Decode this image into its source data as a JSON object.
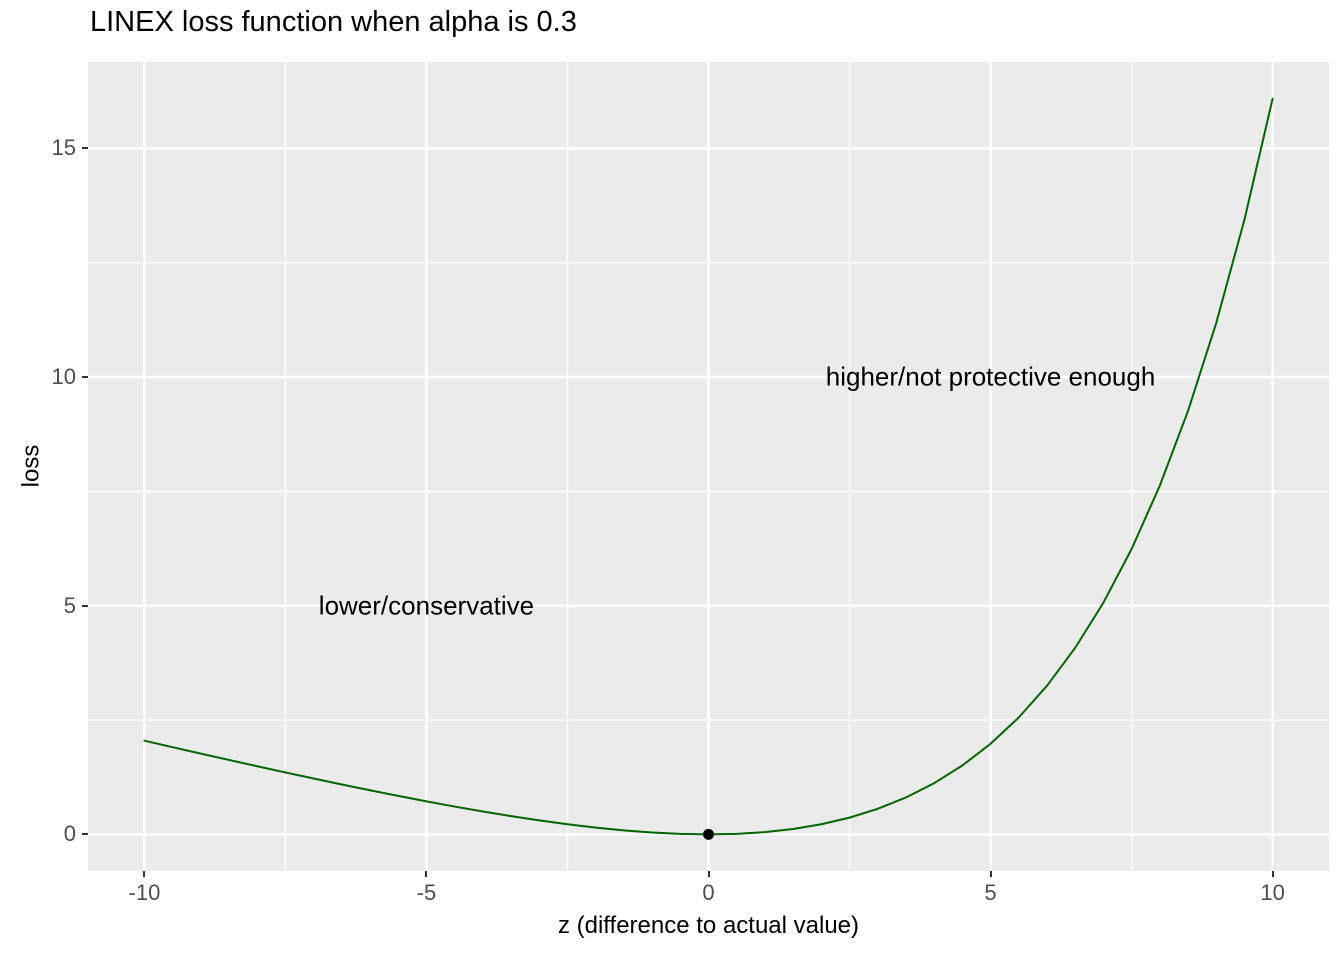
{
  "title": "LINEX loss function when alpha is 0.3",
  "chart_data": {
    "type": "line",
    "title": "LINEX loss function when alpha is 0.3",
    "xlabel": "z (difference to actual value)",
    "ylabel": "loss",
    "alpha": 0.3,
    "xlim": [
      -11,
      11
    ],
    "ylim": [
      -0.8,
      16.89
    ],
    "x_ticks": [
      -10,
      -5,
      0,
      5,
      10
    ],
    "y_ticks": [
      0,
      5,
      10,
      15
    ],
    "x_minor_ticks": [
      -7.5,
      -2.5,
      2.5,
      7.5
    ],
    "y_minor_ticks": [
      2.5,
      7.5,
      12.5
    ],
    "grid": true,
    "legend": false,
    "series": [
      {
        "name": "linex-loss-curve",
        "color": "#006400",
        "x": [
          -10,
          -9.5,
          -9,
          -8.5,
          -8,
          -7.5,
          -7,
          -6.5,
          -6,
          -5.5,
          -5,
          -4.5,
          -4,
          -3.5,
          -3,
          -2.5,
          -2,
          -1.5,
          -1,
          -0.5,
          0,
          0.5,
          1,
          1.5,
          2,
          2.5,
          3,
          3.5,
          4,
          4.5,
          5,
          5.5,
          6,
          6.5,
          7,
          7.5,
          8,
          8.5,
          9,
          9.5,
          10
        ],
        "y": [
          2.0498,
          1.9078,
          1.7672,
          1.6281,
          1.4907,
          1.3554,
          1.2225,
          1.0923,
          0.9653,
          0.842,
          0.7231,
          0.6092,
          0.5012,
          0.3999,
          0.3066,
          0.2224,
          0.1488,
          0.0876,
          0.0408,
          0.0107,
          0,
          0.0118,
          0.0499,
          0.1183,
          0.2221,
          0.367,
          0.5596,
          0.8077,
          1.1201,
          1.5074,
          1.9817,
          2.557,
          3.2496,
          4.0787,
          5.0662,
          6.2377,
          7.6232,
          9.2571,
          11.1797,
          13.4375,
          16.0855
        ]
      }
    ],
    "points": [
      {
        "x": 0,
        "y": 0,
        "color": "#000000",
        "radius": 5.5
      }
    ],
    "annotations": [
      {
        "text": "lower/conservative",
        "x": -5,
        "y": 5
      },
      {
        "text": "higher/not protective enough",
        "x": 5,
        "y": 10
      }
    ],
    "colors": {
      "panel_background": "#EBEBEB",
      "grid_major": "#FFFFFF",
      "grid_minor": "#FFFFFF",
      "tick_label": "#4d4d4d",
      "tick_mark": "#333333",
      "text": "#000000",
      "line": "#006400"
    }
  }
}
